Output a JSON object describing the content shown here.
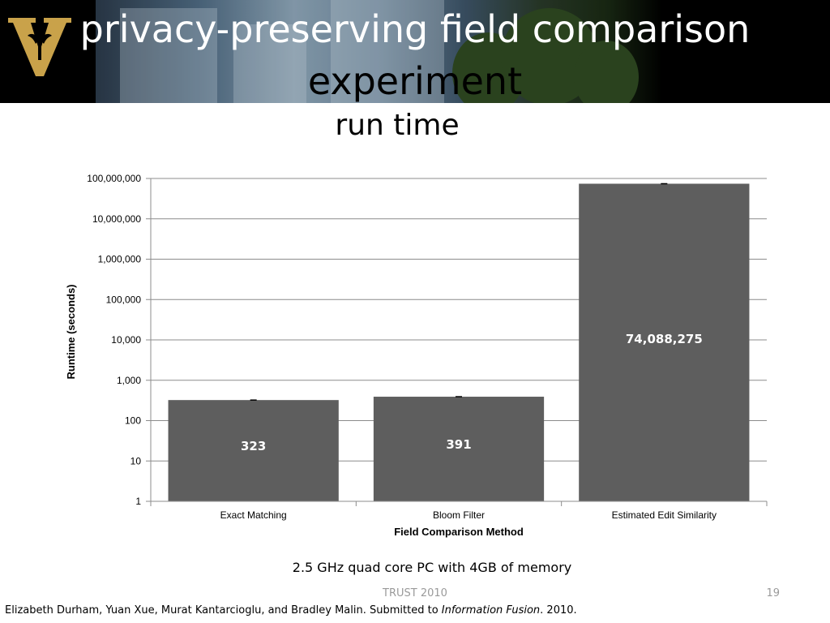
{
  "slide": {
    "title_line1": "privacy-preserving field comparison",
    "title_line2": "experiment",
    "subtitle": "run time",
    "note": "2.5 GHz quad core PC with 4GB of memory",
    "footer": "TRUST 2010",
    "page_number": "19",
    "citation_prefix": "Elizabeth Durham, Yuan Xue, Murat Kantarcioglu, and Bradley Malin.  Submitted to ",
    "citation_journal": "Information Fusion",
    "citation_suffix": ". 2010."
  },
  "colors": {
    "bar": "#5e5e5e",
    "grid": "#8c8c8c",
    "banner_bg": "#000000",
    "logo_gold": "#c9a24a"
  },
  "chart_data": {
    "type": "bar",
    "scale": "log",
    "categories": [
      "Exact Matching",
      "Bloom Filter",
      "Estimated Edit Similarity"
    ],
    "values": [
      323,
      391,
      74088275
    ],
    "data_labels": [
      "323",
      "391",
      "74,088,275"
    ],
    "xlabel": "Field Comparison Method",
    "ylabel": "Runtime (seconds)",
    "ylim": [
      1,
      100000000
    ],
    "yticks": [
      1,
      10,
      100,
      1000,
      10000,
      100000,
      1000000,
      10000000,
      100000000
    ],
    "ytick_labels": [
      "1",
      "10",
      "100",
      "1,000",
      "10,000",
      "100,000",
      "1,000,000",
      "10,000,000",
      "100,000,000"
    ],
    "grid": true,
    "error_bars": true
  }
}
